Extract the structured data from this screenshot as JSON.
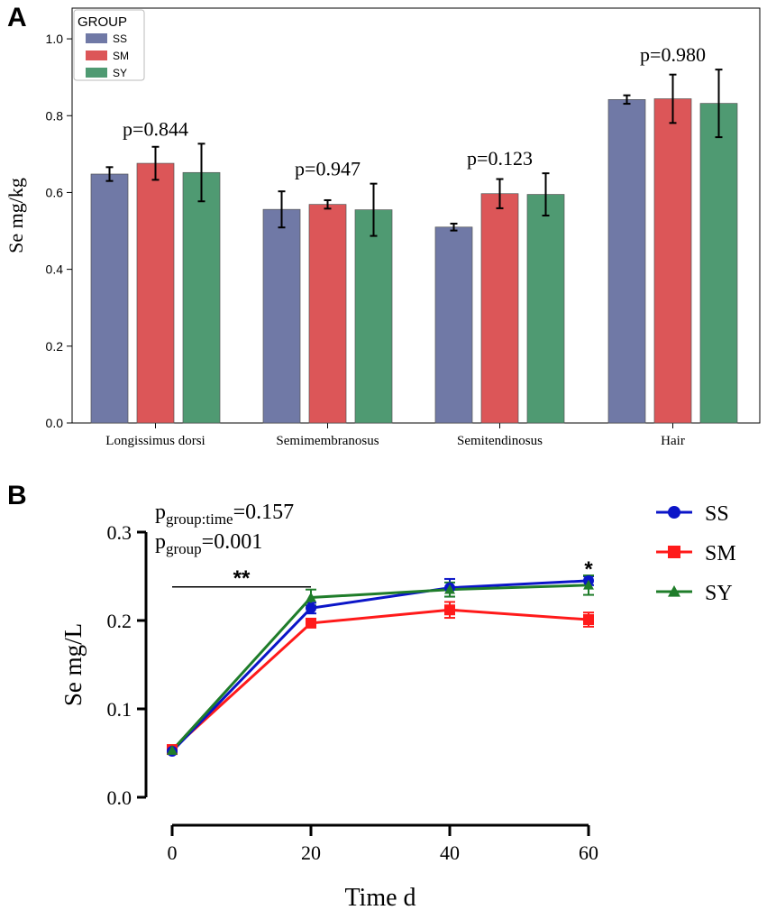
{
  "colors": {
    "SS": "#7079a6",
    "SM": "#dc5658",
    "SY": "#4f9a72",
    "lineSS": "#0b15c8",
    "lineSM": "#ff1a1a",
    "lineSY": "#1f7d2a"
  },
  "chart_data": [
    {
      "panel": "A",
      "type": "bar",
      "title": "",
      "xlabel": "",
      "ylabel": "Se mg/kg",
      "ylim": [
        0,
        1.08
      ],
      "yticks": [
        "0.0",
        "0.2",
        "0.4",
        "0.6",
        "0.8",
        "1.0"
      ],
      "legend": {
        "title": "GROUP",
        "position": "top-left",
        "entries": [
          "SS",
          "SM",
          "SY"
        ]
      },
      "categories": [
        "Longissimus dorsi",
        "Semimembranosus",
        "Semitendinosus",
        "Hair"
      ],
      "series": [
        {
          "name": "SS",
          "values": [
            0.648,
            0.556,
            0.51,
            0.842
          ],
          "errors": [
            0.018,
            0.047,
            0.009,
            0.011
          ]
        },
        {
          "name": "SM",
          "values": [
            0.676,
            0.569,
            0.597,
            0.844
          ],
          "errors": [
            0.043,
            0.011,
            0.038,
            0.063
          ]
        },
        {
          "name": "SY",
          "values": [
            0.652,
            0.555,
            0.595,
            0.832
          ],
          "errors": [
            0.075,
            0.068,
            0.055,
            0.088
          ]
        }
      ],
      "pvalues": [
        "p=0.844",
        "p=0.947",
        "p=0.123",
        "p=0.980"
      ]
    },
    {
      "panel": "B",
      "type": "line",
      "title": "",
      "xlabel": "Time d",
      "ylabel": "Se mg/L",
      "x": [
        0,
        20,
        40,
        60
      ],
      "xticks": [
        "0",
        "20",
        "40",
        "60"
      ],
      "ylim": [
        0,
        0.3
      ],
      "yticks": [
        "0.0",
        "0.1",
        "0.2",
        "0.3"
      ],
      "legend": {
        "position": "top-right",
        "entries": [
          "SS",
          "SM",
          "SY"
        ]
      },
      "series": [
        {
          "name": "SS",
          "marker": "circle",
          "values": [
            0.052,
            0.214,
            0.237,
            0.245
          ],
          "errors": [
            0.003,
            0.006,
            0.01,
            0.005
          ]
        },
        {
          "name": "SM",
          "marker": "square",
          "values": [
            0.054,
            0.197,
            0.212,
            0.201
          ],
          "errors": [
            0.003,
            0.004,
            0.009,
            0.008
          ]
        },
        {
          "name": "SY",
          "marker": "triangle",
          "values": [
            0.053,
            0.226,
            0.235,
            0.24
          ],
          "errors": [
            0.003,
            0.009,
            0.008,
            0.011
          ]
        }
      ],
      "stats": {
        "interaction_label": "p",
        "interaction_sub": "group:time",
        "interaction_value": "=0.157",
        "group_label": "p",
        "group_sub": "group",
        "group_value": "=0.001"
      },
      "significance": [
        {
          "label": "**",
          "from_x": 0,
          "to_x": 20,
          "y": 0.238
        },
        {
          "label": "*",
          "x": 60,
          "y": 0.262
        }
      ]
    }
  ],
  "panels": {
    "a": "A",
    "b": "B"
  }
}
